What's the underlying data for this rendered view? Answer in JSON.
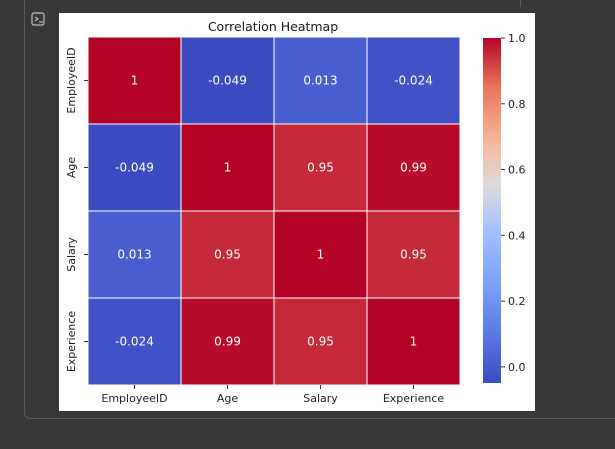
{
  "toolbar": {
    "output_icon": "output-collapse-icon"
  },
  "chart_data": {
    "type": "heatmap",
    "title": "Correlation Heatmap",
    "xlabel": "",
    "ylabel": "",
    "x_categories": [
      "EmployeeID",
      "Age",
      "Salary",
      "Experience"
    ],
    "y_categories": [
      "EmployeeID",
      "Age",
      "Salary",
      "Experience"
    ],
    "values": [
      [
        1,
        -0.049,
        0.013,
        -0.024
      ],
      [
        -0.049,
        1,
        0.95,
        0.99
      ],
      [
        0.013,
        0.95,
        1,
        0.95
      ],
      [
        -0.024,
        0.99,
        0.95,
        1
      ]
    ],
    "annotations": [
      [
        "1",
        "-0.049",
        "0.013",
        "-0.024"
      ],
      [
        "-0.049",
        "1",
        "0.95",
        "0.99"
      ],
      [
        "0.013",
        "0.95",
        "1",
        "0.95"
      ],
      [
        "-0.024",
        "0.99",
        "0.95",
        "1"
      ]
    ],
    "colormap": "coolwarm",
    "colorbar": {
      "vmin": -0.049,
      "vmax": 1,
      "ticks": [
        0.0,
        0.2,
        0.4,
        0.6,
        0.8,
        1.0
      ],
      "tick_labels": [
        "0.0",
        "0.2",
        "0.4",
        "0.6",
        "0.8",
        "1.0"
      ]
    },
    "grid": true,
    "legend": "colorbar-right"
  }
}
